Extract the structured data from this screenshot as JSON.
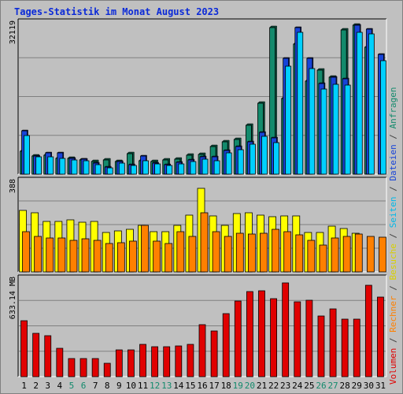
{
  "title": "Tages-Statistik im Monat August 2023",
  "chart_data": [
    {
      "type": "bar",
      "ymax_label": "32119",
      "ylim": [
        0,
        32119
      ],
      "grid": true,
      "legend": "right",
      "categories": [
        "1",
        "2",
        "3",
        "4",
        "5",
        "6",
        "7",
        "8",
        "9",
        "10",
        "11",
        "12",
        "13",
        "14",
        "15",
        "16",
        "17",
        "18",
        "19",
        "20",
        "21",
        "22",
        "23",
        "24",
        "25",
        "26",
        "27",
        "28",
        "29",
        "30",
        "31"
      ],
      "weekend_days": [
        "5",
        "6",
        "12",
        "13",
        "19",
        "20",
        "26",
        "27"
      ],
      "series": [
        {
          "name": "Anfragen",
          "color": "#138a6c",
          "values": [
            4900,
            3900,
            4000,
            3400,
            3400,
            3000,
            2600,
            3000,
            2700,
            4300,
            2800,
            2600,
            3000,
            3200,
            4000,
            4100,
            5900,
            6900,
            7300,
            10300,
            15000,
            31000,
            15900,
            27500,
            19600,
            21900,
            20500,
            30500,
            31500,
            26800,
            0
          ]
        },
        {
          "name": "Dateien",
          "color": "#1744d8",
          "values": [
            9200,
            3900,
            4500,
            4500,
            3300,
            3100,
            2400,
            1500,
            2600,
            2000,
            3900,
            2400,
            2000,
            2500,
            3000,
            3600,
            3700,
            5000,
            5900,
            6900,
            8900,
            7600,
            24500,
            31000,
            24400,
            19100,
            20500,
            20200,
            31400,
            30600,
            25300
          ]
        },
        {
          "name": "Seiten",
          "color": "#00d0ff",
          "values": [
            8200,
            3700,
            3600,
            3400,
            3000,
            2900,
            2000,
            1300,
            2300,
            1800,
            2800,
            2200,
            1800,
            2200,
            2700,
            3200,
            2900,
            4500,
            5100,
            6300,
            8000,
            6700,
            22800,
            30000,
            22300,
            17900,
            18900,
            18800,
            30000,
            29600,
            23900
          ]
        }
      ]
    },
    {
      "type": "bar",
      "ymax_label": "388",
      "ylim": [
        0,
        388
      ],
      "grid": true,
      "legend": "right",
      "series": [
        {
          "name": "Besuche",
          "color": "#ffff00",
          "values": [
            260,
            250,
            215,
            215,
            220,
            210,
            213,
            168,
            175,
            180,
            197,
            170,
            172,
            196,
            240,
            356,
            236,
            196,
            246,
            250,
            240,
            233,
            238,
            238,
            166,
            168,
            193,
            183,
            165,
            0,
            0
          ]
        },
        {
          "name": "Rechner",
          "color": "#ff8000",
          "values": [
            170,
            150,
            145,
            145,
            134,
            140,
            135,
            120,
            125,
            130,
            196,
            130,
            120,
            170,
            150,
            250,
            170,
            150,
            165,
            160,
            165,
            180,
            170,
            158,
            135,
            115,
            145,
            150,
            160,
            150,
            148
          ]
        }
      ]
    },
    {
      "type": "bar",
      "ymax_label": "633.14 MB",
      "ylim": [
        0,
        633.14
      ],
      "grid": true,
      "legend": "right",
      "series": [
        {
          "name": "Volumen",
          "color": "#e00000",
          "values": [
            360,
            280,
            262,
            180,
            114,
            114,
            114,
            88,
            172,
            172,
            210,
            190,
            190,
            200,
            210,
            332,
            292,
            406,
            488,
            546,
            552,
            502,
            602,
            480,
            490,
            390,
            436,
            372,
            372,
            590,
            514
          ]
        }
      ]
    }
  ],
  "legend_text": [
    {
      "text": "Volumen",
      "color": "#e00000"
    },
    {
      "text": " / ",
      "color": "#404040"
    },
    {
      "text": "Rechner",
      "color": "#ff8000"
    },
    {
      "text": " / ",
      "color": "#404040"
    },
    {
      "text": "Besuche",
      "color": "#d8d000"
    },
    {
      "text": " / ",
      "color": "#404040"
    },
    {
      "text": "Seiten",
      "color": "#00b8e8"
    },
    {
      "text": " / ",
      "color": "#404040"
    },
    {
      "text": "Dateien",
      "color": "#1744d8"
    },
    {
      "text": " / ",
      "color": "#404040"
    },
    {
      "text": "Anfragen",
      "color": "#138a6c"
    }
  ]
}
